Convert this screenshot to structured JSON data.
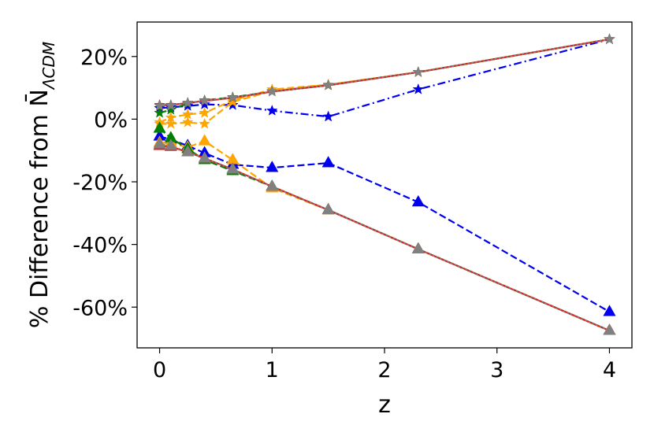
{
  "chart_data": {
    "type": "line",
    "xlabel": "z",
    "ylabel": "% Difference from N̄",
    "ylabel_subscript": "ΛCDM",
    "xlim": [
      -0.2,
      4.2
    ],
    "ylim": [
      -73,
      31
    ],
    "xticks": [
      0,
      1,
      2,
      3,
      4
    ],
    "xtick_labels": [
      "0",
      "1",
      "2",
      "3",
      "4"
    ],
    "yticks": [
      20,
      0,
      -20,
      -40,
      -60
    ],
    "ytick_labels": [
      "20%",
      "0%",
      "-20%",
      "-40%",
      "-60%"
    ],
    "grid": false,
    "legend": "none",
    "series": [
      {
        "color": "#0000ee",
        "linestyle": "dashdot",
        "marker": "star",
        "points": [
          [
            0,
            3.5
          ],
          [
            0.1,
            3.8
          ],
          [
            0.25,
            4.2
          ],
          [
            0.4,
            4.7
          ],
          [
            0.65,
            4.5
          ],
          [
            1.0,
            2.7
          ],
          [
            1.5,
            0.8
          ],
          [
            2.3,
            9.5
          ],
          [
            4.0,
            25.5
          ]
        ]
      },
      {
        "color": "#0000ee",
        "linestyle": "dashed",
        "marker": "triangle",
        "points": [
          [
            0,
            -5.5
          ],
          [
            0.1,
            -6.5
          ],
          [
            0.25,
            -8.5
          ],
          [
            0.4,
            -10.8
          ],
          [
            0.65,
            -14.5
          ],
          [
            1.0,
            -15.5
          ],
          [
            1.5,
            -14.0
          ],
          [
            2.3,
            -26.5
          ],
          [
            4.0,
            -61.5
          ]
        ]
      },
      {
        "color": "#ffa500",
        "linestyle": "dashed",
        "marker": "star",
        "points": [
          [
            0,
            -1.0
          ],
          [
            0.1,
            0.5
          ],
          [
            0.25,
            1.5
          ],
          [
            0.4,
            2.0
          ],
          [
            0.65,
            6.0
          ],
          [
            1.0,
            9.5
          ],
          [
            1.5,
            11.0
          ],
          [
            2.3,
            15.0
          ],
          [
            4.0,
            25.5
          ]
        ]
      },
      {
        "color": "#ffa500",
        "linestyle": "dashed",
        "marker": "star",
        "points": [
          [
            0,
            -1.5
          ],
          [
            0.1,
            -1.5
          ],
          [
            0.25,
            -1.0
          ],
          [
            0.4,
            -1.5
          ],
          [
            0.65,
            5.5
          ],
          [
            1.0,
            9.0
          ],
          [
            1.5,
            11.0
          ],
          [
            2.3,
            15.0
          ],
          [
            4.0,
            25.5
          ]
        ]
      },
      {
        "color": "#ffa500",
        "linestyle": "dashed",
        "marker": "triangle",
        "points": [
          [
            0,
            -7.5
          ],
          [
            0.1,
            -7.5
          ],
          [
            0.25,
            -9.0
          ],
          [
            0.4,
            -7.0
          ],
          [
            0.65,
            -13.0
          ],
          [
            1.0,
            -22.0
          ],
          [
            1.5,
            -29.0
          ],
          [
            2.3,
            -41.5
          ],
          [
            4.0,
            -67.5
          ]
        ]
      },
      {
        "color": "#008000",
        "linestyle": "dashed",
        "marker": "star",
        "points": [
          [
            0,
            2.0
          ],
          [
            0.1,
            3.0
          ],
          [
            0.25,
            5.0
          ],
          [
            0.4,
            6.0
          ],
          [
            0.65,
            7.0
          ],
          [
            1.0,
            8.8
          ],
          [
            1.5,
            10.8
          ],
          [
            2.3,
            15.0
          ],
          [
            4.0,
            25.5
          ]
        ]
      },
      {
        "color": "#008000",
        "linestyle": "dashed",
        "marker": "triangle",
        "points": [
          [
            0,
            -3.0
          ],
          [
            0.1,
            -6.0
          ],
          [
            0.25,
            -9.5
          ],
          [
            0.4,
            -13.0
          ],
          [
            0.65,
            -16.5
          ],
          [
            1.0,
            -21.5
          ],
          [
            1.5,
            -29.0
          ],
          [
            2.3,
            -41.5
          ],
          [
            4.0,
            -67.5
          ]
        ]
      },
      {
        "color": "#d62728",
        "linestyle": "solid",
        "marker": "star",
        "points": [
          [
            0,
            4.5
          ],
          [
            0.1,
            4.5
          ],
          [
            0.25,
            5.2
          ],
          [
            0.4,
            5.8
          ],
          [
            0.65,
            6.8
          ],
          [
            1.0,
            8.8
          ],
          [
            1.5,
            10.8
          ],
          [
            2.3,
            15.0
          ],
          [
            4.0,
            25.5
          ]
        ]
      },
      {
        "color": "#d62728",
        "linestyle": "solid",
        "marker": "triangle",
        "points": [
          [
            0,
            -8.5
          ],
          [
            0.1,
            -8.8
          ],
          [
            0.25,
            -10.5
          ],
          [
            0.4,
            -12.5
          ],
          [
            0.65,
            -16.0
          ],
          [
            1.0,
            -21.5
          ],
          [
            1.5,
            -29.0
          ],
          [
            2.3,
            -41.5
          ],
          [
            4.0,
            -67.5
          ]
        ]
      },
      {
        "color": "#808080",
        "linestyle": "dotted",
        "marker": "star",
        "points": [
          [
            0,
            4.2
          ],
          [
            0.1,
            4.3
          ],
          [
            0.25,
            5.2
          ],
          [
            0.4,
            5.9
          ],
          [
            0.65,
            6.9
          ],
          [
            1.0,
            8.8
          ],
          [
            1.5,
            10.8
          ],
          [
            2.3,
            15.0
          ],
          [
            4.0,
            25.5
          ]
        ]
      },
      {
        "color": "#808080",
        "linestyle": "dotted",
        "marker": "triangle",
        "points": [
          [
            0,
            -8.0
          ],
          [
            0.1,
            -8.5
          ],
          [
            0.25,
            -10.5
          ],
          [
            0.4,
            -12.5
          ],
          [
            0.65,
            -16.0
          ],
          [
            1.0,
            -21.5
          ],
          [
            1.5,
            -29.0
          ],
          [
            2.3,
            -41.5
          ],
          [
            4.0,
            -67.5
          ]
        ]
      }
    ]
  }
}
